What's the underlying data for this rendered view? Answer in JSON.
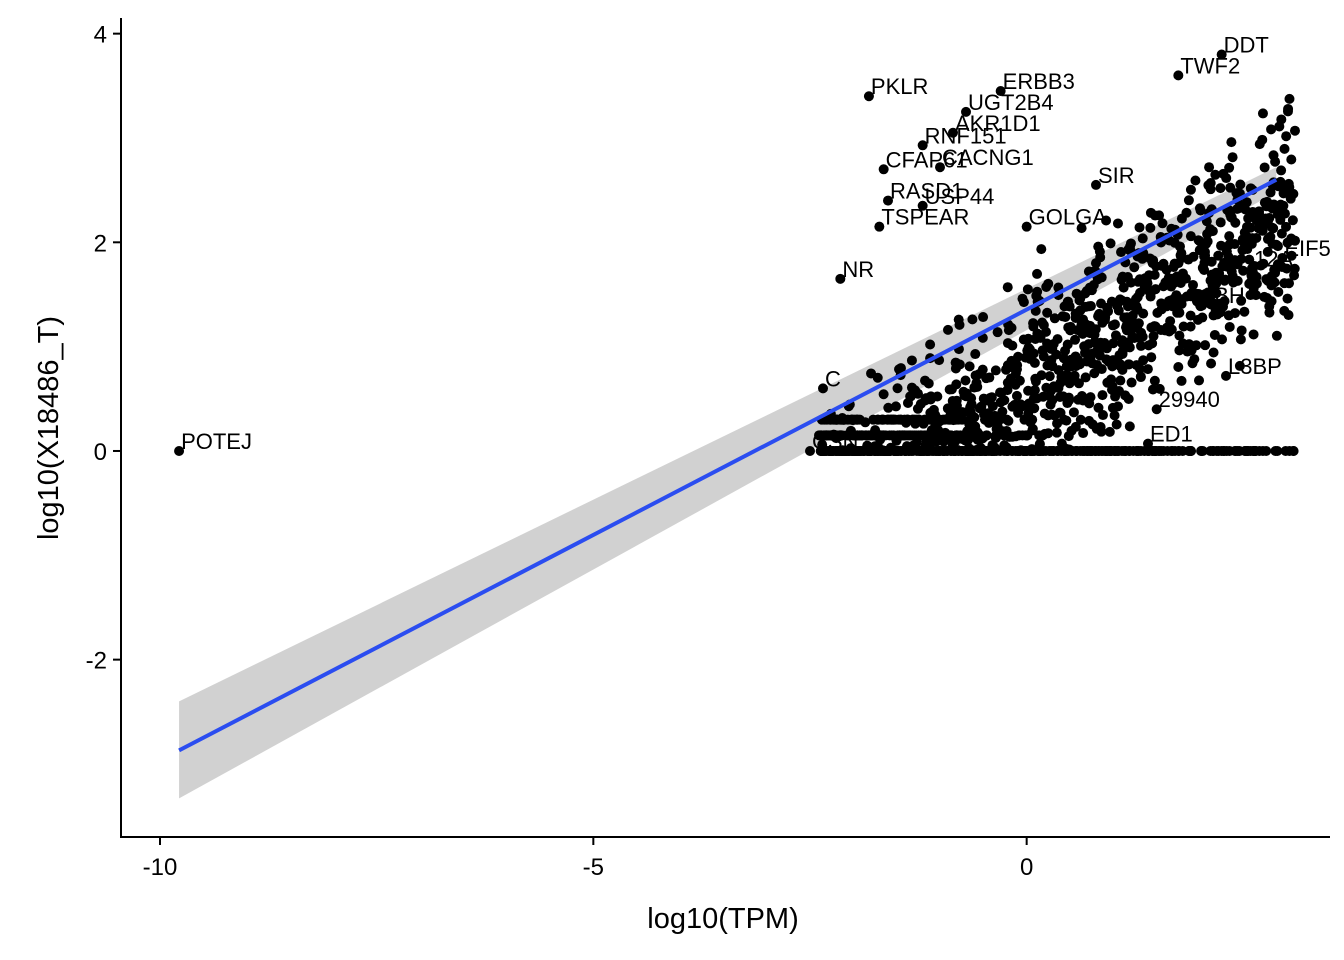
{
  "chart_data": {
    "type": "scatter",
    "xlabel": "log10(TPM)",
    "ylabel": "log10(X18486_T)",
    "xlim": [
      -10.45,
      3.5
    ],
    "ylim": [
      -3.7,
      4.15
    ],
    "x_ticks": [
      -10,
      -5,
      0
    ],
    "y_ticks": [
      -2,
      0,
      2,
      4
    ],
    "grid": false,
    "legend": "none",
    "colors": {
      "points": "#000000",
      "fit_line": "#2b4df0",
      "ribbon": "#cccccc"
    },
    "fit": {
      "method": "linear",
      "x_start": -9.78,
      "y_start": -2.87,
      "x_end": 2.88,
      "y_end": 2.6,
      "ci_lower_start": -3.33,
      "ci_upper_start": -2.4,
      "ci_lower_end": 2.48,
      "ci_upper_end": 2.72
    },
    "labeled_points": [
      {
        "label": "POTEJ",
        "x": -9.78,
        "y": 0.0
      },
      {
        "label": "DDT",
        "x": 2.25,
        "y": 3.8
      },
      {
        "label": "TWF2",
        "x": 1.75,
        "y": 3.6
      },
      {
        "label": "PKLR",
        "x": -1.82,
        "y": 3.4
      },
      {
        "label": "ERBB3",
        "x": -0.3,
        "y": 3.45
      },
      {
        "label": "UGT2B4",
        "x": -0.7,
        "y": 3.25
      },
      {
        "label": "AKR1D1",
        "x": -0.85,
        "y": 3.05
      },
      {
        "label": "RNF151",
        "x": -1.2,
        "y": 2.93
      },
      {
        "label": "CFAP61",
        "x": -1.65,
        "y": 2.7
      },
      {
        "label": "CACNG1",
        "x": -1.0,
        "y": 2.72
      },
      {
        "label": "RASD1",
        "x": -1.6,
        "y": 2.4
      },
      {
        "label": "USP44",
        "x": -1.2,
        "y": 2.35
      },
      {
        "label": "GOLGA",
        "x": 0.0,
        "y": 2.15
      },
      {
        "label": "TSPEAR",
        "x": -1.7,
        "y": 2.15
      },
      {
        "label": "NR",
        "x": -2.15,
        "y": 1.65
      },
      {
        "label": "EIF5",
        "x": 2.95,
        "y": 1.85
      },
      {
        "label": "12A",
        "x": 2.6,
        "y": 1.75
      },
      {
        "label": "2BH",
        "x": 2.0,
        "y": 1.4
      },
      {
        "label": "L3BP",
        "x": 2.3,
        "y": 0.72
      },
      {
        "label": "29940",
        "x": 1.5,
        "y": 0.4
      },
      {
        "label": "ED1",
        "x": 1.4,
        "y": 0.07
      },
      {
        "label": "CSN",
        "x": -2.5,
        "y": 0.0
      },
      {
        "label": "C",
        "x": -2.35,
        "y": 0.6
      },
      {
        "label": "SIR",
        "x": 0.8,
        "y": 2.55
      }
    ],
    "cluster": {
      "x_range": [
        -2.4,
        3.1
      ],
      "y_min": 0.0,
      "y_base": 0.6,
      "slope": 0.55,
      "spread": 0.9,
      "zero_row_x_range": [
        -2.1,
        1.8
      ],
      "count": 1400
    }
  }
}
